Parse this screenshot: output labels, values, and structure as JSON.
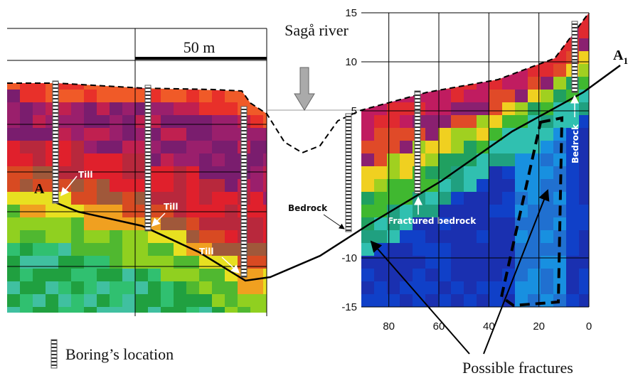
{
  "labels": {
    "river": "Sagå river",
    "scale": "50 m",
    "a_start": "A",
    "a_end": "A",
    "a_end_sub": "1",
    "till": [
      "Till",
      "Till",
      "Till"
    ],
    "bedrock_left": "Bedrock",
    "bedrock_right": "Bedrock",
    "fractured": "Fractured bedrock",
    "legend": "Boring’s location",
    "fractures": "Possible fractures"
  },
  "axis": {
    "xlim": [
      91,
      0
    ],
    "xticks": [
      80,
      60,
      40,
      20,
      0
    ],
    "ylim": [
      -15,
      15
    ],
    "yticks": [
      15,
      10,
      5,
      -10,
      -15
    ]
  }
}
